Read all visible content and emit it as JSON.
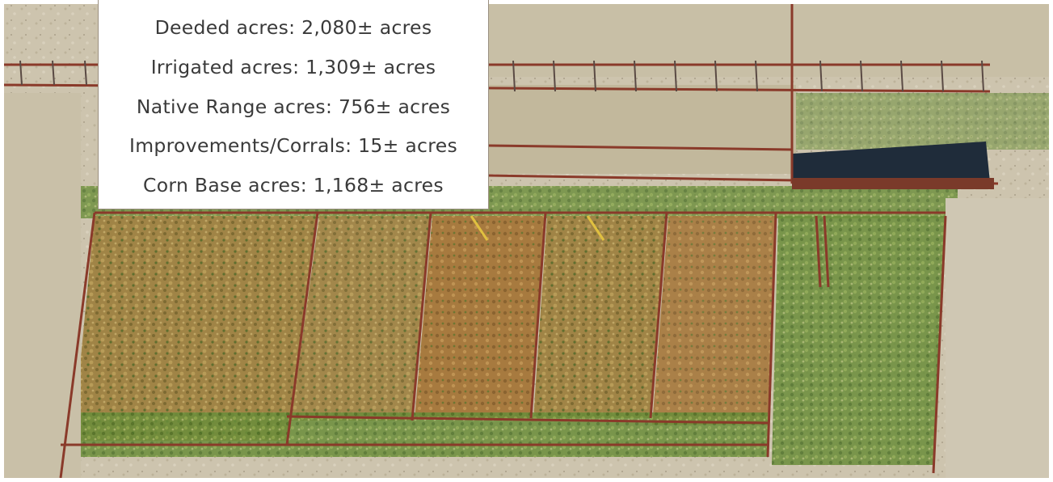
{
  "info_box": {
    "lines": [
      "Deeded acres: 2,080± acres",
      "Irrigated acres: 1,309± acres",
      "Native Range acres: 756± acres",
      "Improvements/Corrals: 15± acres",
      "Corn Base acres: 1,168± acres"
    ],
    "text_color": "#3a3a3a",
    "background_color": "#ffffff"
  },
  "photo": {
    "subject": "aerial-view-of-cattle-corrals",
    "colors": {
      "dirt": "#cfc6b2",
      "dry_grass": "#a58a4a",
      "green_weeds": "#5f8a35",
      "fence": "#8a3a2a",
      "shadow": "#1f2c3a"
    }
  }
}
